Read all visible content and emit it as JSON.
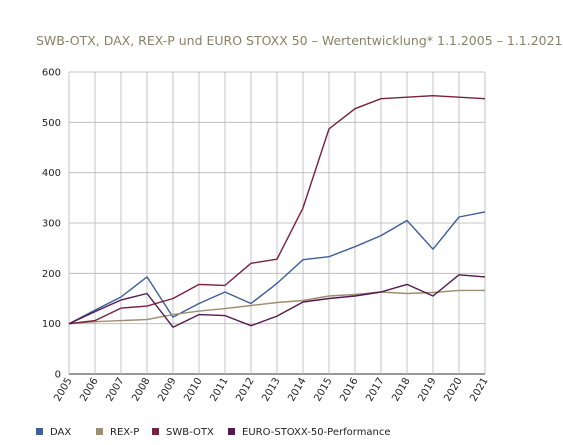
{
  "chart_data": {
    "type": "line",
    "title": "SWB-OTX, DAX, REX-P und EURO STOXX 50 – Wertentwicklung* 1.1.2005 – 1.1.2021",
    "xlabel": "",
    "ylabel": "",
    "x": [
      "2005",
      "2006",
      "2007",
      "2008",
      "2009",
      "2010",
      "2011",
      "2012",
      "2013",
      "2014",
      "2015",
      "2016",
      "2017",
      "2018",
      "2019",
      "2020",
      "2021"
    ],
    "ylim": [
      0,
      600
    ],
    "yticks": [
      0,
      100,
      200,
      300,
      400,
      500,
      600
    ],
    "grid": true,
    "legend_position": "bottom",
    "series": [
      {
        "name": "DAX",
        "color": "#3d5f9a",
        "values": [
          100,
          127,
          153,
          193,
          113,
          140,
          163,
          140,
          180,
          227,
          233,
          253,
          275,
          305,
          248,
          312,
          322
        ]
      },
      {
        "name": "REX-P",
        "color": "#9c8d6e",
        "values": [
          100,
          104,
          106,
          108,
          118,
          125,
          130,
          136,
          142,
          146,
          155,
          158,
          163,
          160,
          162,
          166,
          166
        ]
      },
      {
        "name": "SWB-OTX",
        "color": "#7a1f3e",
        "values": [
          100,
          106,
          131,
          135,
          150,
          178,
          176,
          220,
          228,
          330,
          487,
          527,
          547,
          550,
          553,
          550,
          547
        ]
      },
      {
        "name": "EURO-STOXX-50-Performance",
        "color": "#54194f",
        "values": [
          100,
          124,
          147,
          160,
          93,
          118,
          116,
          96,
          115,
          143,
          150,
          155,
          163,
          178,
          155,
          197,
          193
        ]
      }
    ]
  }
}
